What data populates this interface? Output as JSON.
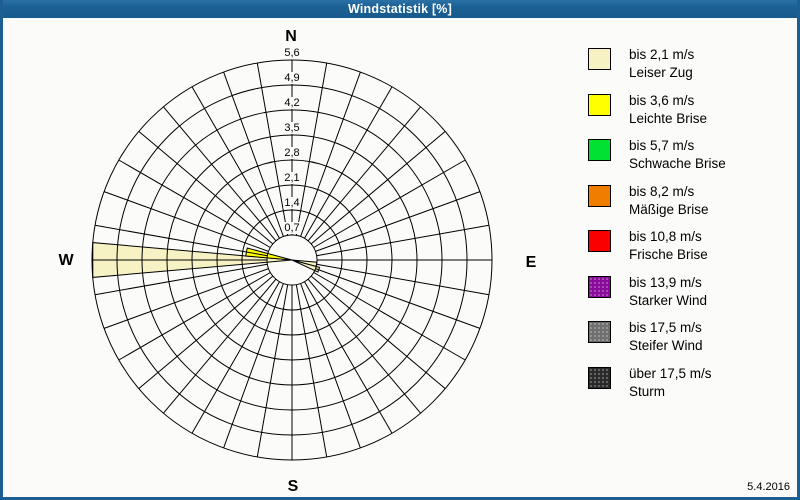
{
  "window": {
    "title": "Windstatistik [%]",
    "date": "5.4.2016",
    "titlebar_color": "#1d6296",
    "border_color": "#1d5f92"
  },
  "chart_data": {
    "type": "windrose-bar",
    "title": "Windstatistik [%]",
    "unit": "%",
    "compass": {
      "n": "N",
      "e": "E",
      "s": "S",
      "w": "W"
    },
    "axis": {
      "min": 0,
      "max": 5.6,
      "step": 0.7,
      "tick_labels": [
        "0,7",
        "1,4",
        "2,1",
        "2,8",
        "3,5",
        "4,2",
        "4,9",
        "5,6"
      ]
    },
    "grid": {
      "rings": 8,
      "radial_every_deg": 10,
      "inner_hole_value": 0.7,
      "line_color": "#000000"
    },
    "sector_width_deg": 10,
    "series": [
      {
        "direction_deg": 270,
        "value": 5.6,
        "speed_class": "bis 2,1 m/s",
        "color": "#f6f2c4"
      },
      {
        "direction_deg": 280,
        "value": 1.3,
        "speed_class": "bis 3,6 m/s",
        "color": "#ffff00"
      },
      {
        "direction_deg": 100,
        "value": 0.7,
        "speed_class": "bis 2,1 m/s",
        "color": "#f6f2c4"
      },
      {
        "direction_deg": 110,
        "value": 0.8,
        "speed_class": "bis 2,1 m/s",
        "color": "#f6f2c4"
      }
    ]
  },
  "legend": {
    "items": [
      {
        "speed": "bis 2,1 m/s",
        "name": "Leiser Zug",
        "color": "#f6f2c4",
        "textured": false
      },
      {
        "speed": "bis 3,6 m/s",
        "name": "Leichte Brise",
        "color": "#ffff00",
        "textured": false
      },
      {
        "speed": "bis 5,7 m/s",
        "name": "Schwache Brise",
        "color": "#00e132",
        "textured": false
      },
      {
        "speed": "bis 8,2 m/s",
        "name": "Mäßige Brise",
        "color": "#f07d00",
        "textured": false
      },
      {
        "speed": "bis 10,8 m/s",
        "name": "Frische Brise",
        "color": "#fa0000",
        "textured": false
      },
      {
        "speed": "bis 13,9 m/s",
        "name": "Starker Wind",
        "color": "#8a0b9b",
        "textured": true
      },
      {
        "speed": "bis 17,5 m/s",
        "name": "Steifer Wind",
        "color": "#6f6f6f",
        "textured": true
      },
      {
        "speed": "über 17,5 m/s",
        "name": "Sturm",
        "color": "#2b2b2b",
        "textured": true
      }
    ]
  }
}
